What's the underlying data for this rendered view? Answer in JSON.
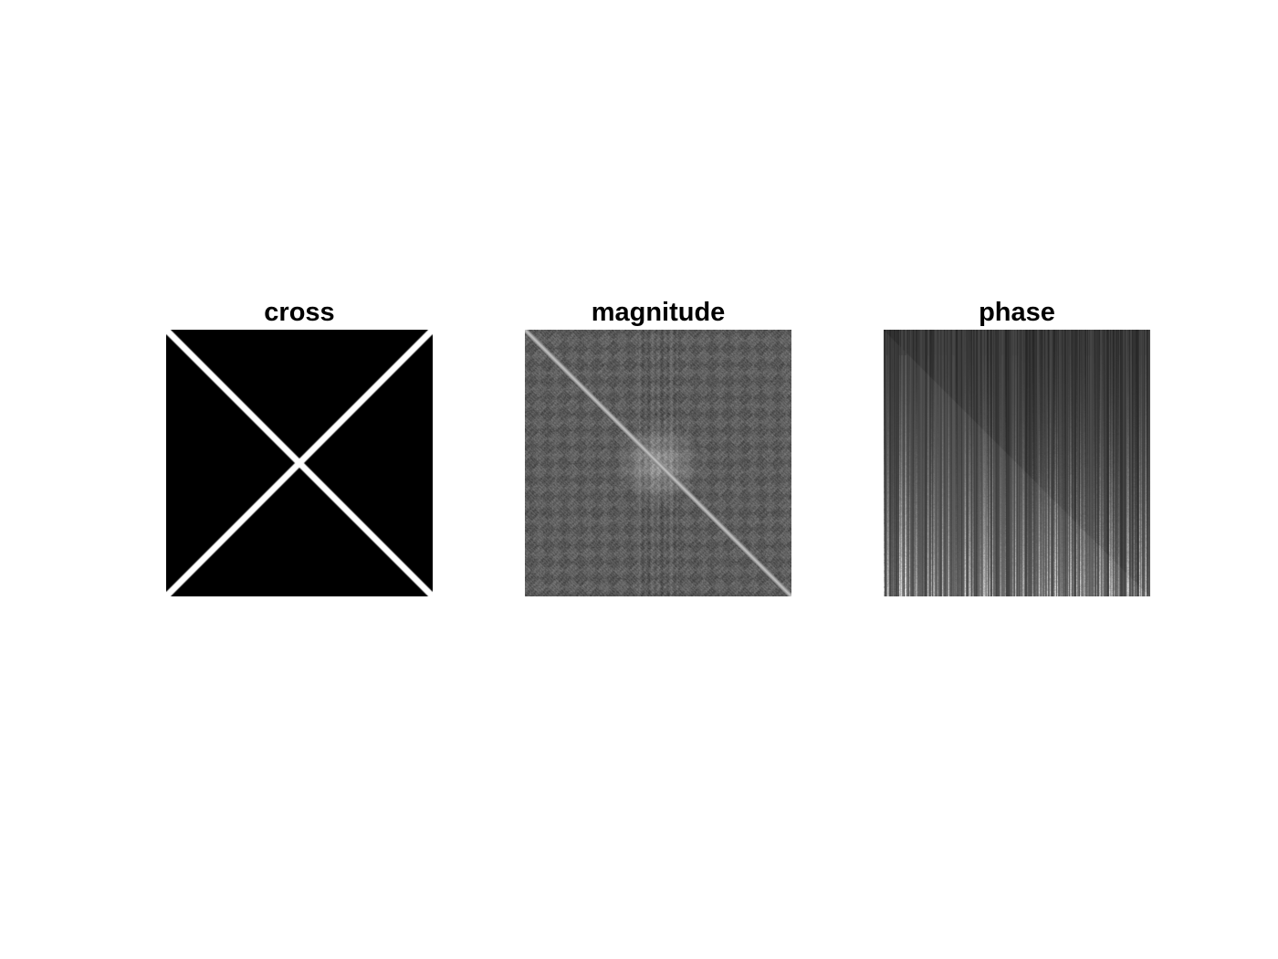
{
  "figure": {
    "background_color": "#ffffff",
    "panels": [
      {
        "id": "cross",
        "title": "cross",
        "content": "binary image of a white diagonal X cross on black background",
        "colormap": "gray"
      },
      {
        "id": "magnitude",
        "title": "magnitude",
        "content": "log-scaled Fourier magnitude spectrum, bright anti-diagonal streak through center",
        "colormap": "gray"
      },
      {
        "id": "phase",
        "title": "phase",
        "content": "Fourier phase image dominated by vertical streaks",
        "colormap": "gray"
      }
    ]
  }
}
